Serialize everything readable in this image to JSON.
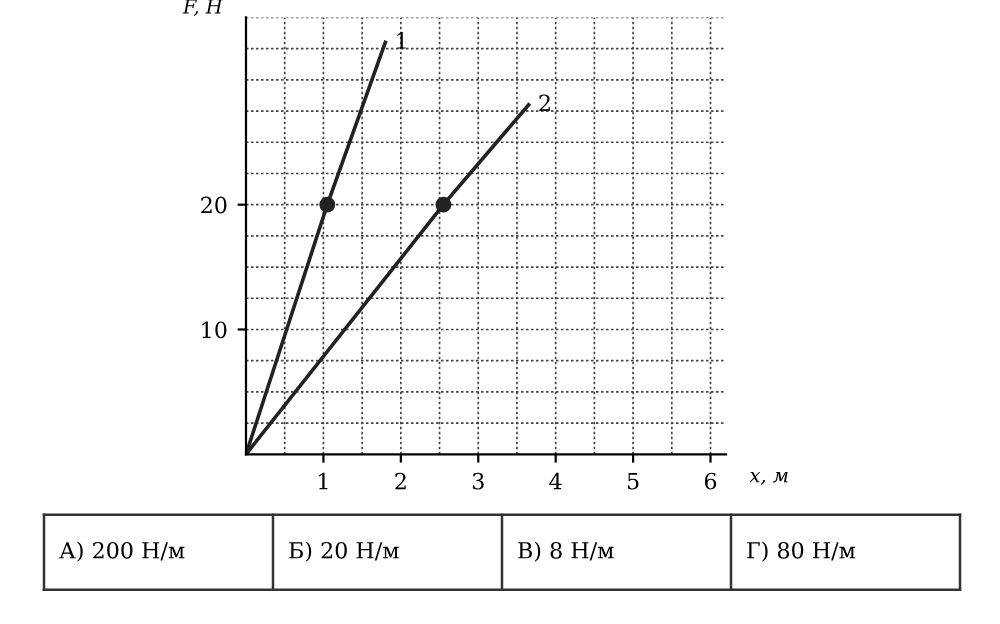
{
  "chart_data": {
    "type": "line",
    "xlabel": "x, м",
    "ylabel": "F, Н",
    "series": [
      {
        "name": "1",
        "color": "#222222",
        "x": [
          0,
          1.05,
          1.8
        ],
        "values": [
          0,
          20,
          33
        ]
      },
      {
        "name": "2",
        "color": "#222222",
        "x": [
          0,
          2.55,
          3.65
        ],
        "values": [
          0,
          20,
          28
        ]
      },
      {
        "type": "scatter",
        "color": "#222222",
        "x": [
          1.05,
          2.55
        ],
        "values": [
          20,
          20
        ],
        "marker": "circle"
      }
    ],
    "xlim": [
      0,
      6.2
    ],
    "ylim": [
      0,
      35
    ],
    "xticks": [
      1,
      2,
      3,
      4,
      5,
      6
    ],
    "yticks": [
      10,
      20
    ],
    "grid": true,
    "line_style": "solid",
    "annotations": [
      "А) 200 Н/м",
      "Б) 20 Н/м",
      "В) 8 Н/м",
      "Г) 80 Н/м"
    ]
  }
}
